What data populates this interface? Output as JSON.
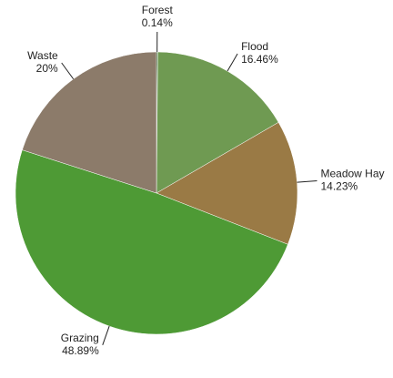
{
  "chart_data": {
    "type": "pie",
    "categories": [
      "Forest",
      "Flood",
      "Meadow Hay",
      "Grazing",
      "Waste"
    ],
    "values": [
      0.14,
      16.46,
      14.23,
      48.89,
      20
    ],
    "value_labels": [
      "0.14%",
      "16.46%",
      "14.23%",
      "48.89%",
      "20%"
    ],
    "colors": [
      "#2f5a2a",
      "#6f9a52",
      "#9a7a45",
      "#4e9a35",
      "#8c7b6a"
    ]
  }
}
